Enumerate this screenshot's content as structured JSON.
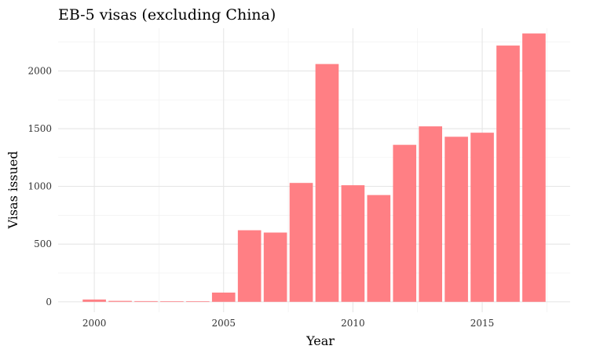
{
  "chart_data": {
    "type": "bar",
    "title": "EB-5 visas (excluding China)",
    "xlabel": "Year",
    "ylabel": "Visas issued",
    "x": [
      2000,
      2001,
      2002,
      2003,
      2004,
      2005,
      2006,
      2007,
      2008,
      2009,
      2010,
      2011,
      2012,
      2013,
      2014,
      2015,
      2016,
      2017
    ],
    "values": [
      20,
      8,
      6,
      5,
      5,
      80,
      620,
      600,
      1030,
      2060,
      1010,
      925,
      1360,
      1520,
      1430,
      1465,
      2220,
      2325
    ],
    "xlim": [
      1998.6,
      2018.4
    ],
    "ylim": [
      -90,
      2370
    ],
    "x_ticks": [
      "2000",
      "2005",
      "2010",
      "2015"
    ],
    "y_ticks": [
      "0",
      "500",
      "1000",
      "1500",
      "2000"
    ],
    "grid": true,
    "legend": "none",
    "bar_color": "#ff7f84"
  }
}
